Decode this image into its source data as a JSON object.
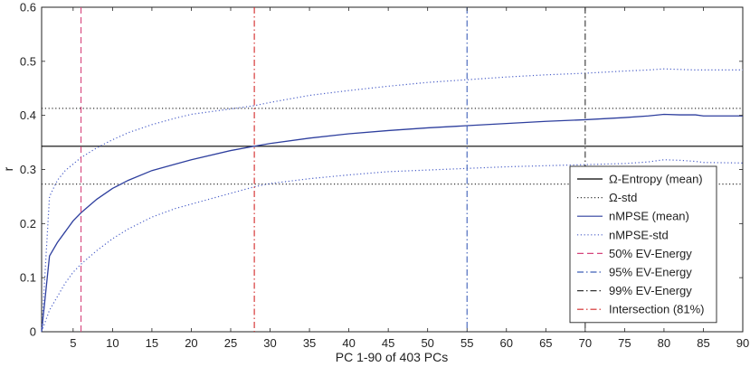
{
  "chart_data": {
    "type": "line",
    "xlabel": "PC 1-90 of 403 PCs",
    "ylabel": "r",
    "xlim": [
      1,
      90
    ],
    "ylim": [
      0,
      0.6
    ],
    "x_ticks": [
      5,
      10,
      15,
      20,
      25,
      30,
      35,
      40,
      45,
      50,
      55,
      60,
      65,
      70,
      75,
      80,
      85,
      90
    ],
    "y_ticks": [
      0,
      0.1,
      0.2,
      0.3,
      0.4,
      0.5,
      0.6
    ],
    "legend_position": "bottom-right",
    "series": [
      {
        "name": "Ω-Entropy (mean)",
        "kind": "hline",
        "y": 0.343,
        "color": "#000000",
        "dash": "solid"
      },
      {
        "name": "Ω-std",
        "kind": "hline_pair",
        "y": [
          0.273,
          0.413
        ],
        "color": "#333333",
        "dash": "dotted"
      },
      {
        "name": "nMPSE (mean)",
        "kind": "curve",
        "color": "#2e3f9e",
        "dash": "solid",
        "x": [
          1,
          2,
          3,
          4,
          5,
          6,
          8,
          10,
          12,
          15,
          18,
          20,
          25,
          28,
          30,
          35,
          40,
          45,
          50,
          55,
          60,
          65,
          70,
          75,
          78,
          80,
          82,
          84,
          85,
          90
        ],
        "y": [
          0.0,
          0.14,
          0.165,
          0.185,
          0.205,
          0.22,
          0.245,
          0.265,
          0.28,
          0.298,
          0.31,
          0.318,
          0.335,
          0.343,
          0.348,
          0.358,
          0.366,
          0.372,
          0.377,
          0.381,
          0.385,
          0.389,
          0.392,
          0.396,
          0.399,
          0.402,
          0.401,
          0.401,
          0.399,
          0.399
        ]
      },
      {
        "name": "nMPSE-std",
        "kind": "band",
        "color": "#4a5fc8",
        "dash": "dotted",
        "x": [
          1,
          2,
          3,
          4,
          5,
          6,
          8,
          10,
          12,
          15,
          18,
          20,
          25,
          28,
          30,
          35,
          40,
          45,
          50,
          55,
          60,
          65,
          70,
          75,
          78,
          80,
          82,
          84,
          85,
          90
        ],
        "upper": [
          0.0,
          0.25,
          0.28,
          0.298,
          0.31,
          0.322,
          0.34,
          0.355,
          0.368,
          0.383,
          0.395,
          0.402,
          0.412,
          0.418,
          0.424,
          0.437,
          0.446,
          0.454,
          0.461,
          0.466,
          0.471,
          0.475,
          0.478,
          0.482,
          0.484,
          0.486,
          0.485,
          0.484,
          0.484,
          0.484
        ],
        "lower": [
          0.0,
          0.04,
          0.065,
          0.09,
          0.11,
          0.125,
          0.15,
          0.172,
          0.19,
          0.212,
          0.228,
          0.236,
          0.256,
          0.268,
          0.274,
          0.283,
          0.29,
          0.296,
          0.299,
          0.302,
          0.305,
          0.307,
          0.309,
          0.311,
          0.314,
          0.318,
          0.317,
          0.315,
          0.313,
          0.312
        ]
      },
      {
        "name": "50% EV-Energy",
        "kind": "vline",
        "x": 6,
        "color": "#d6457b",
        "dash": "dashed"
      },
      {
        "name": "95% EV-Energy",
        "kind": "vline",
        "x": 55,
        "color": "#3d5fb8",
        "dash": "dashdot"
      },
      {
        "name": "99% EV-Energy",
        "kind": "vline",
        "x": 70,
        "color": "#333333",
        "dash": "dashdot"
      },
      {
        "name": "Intersection (81%)",
        "kind": "vline",
        "x": 28,
        "color": "#d42828",
        "dash": "dashdot"
      }
    ]
  }
}
